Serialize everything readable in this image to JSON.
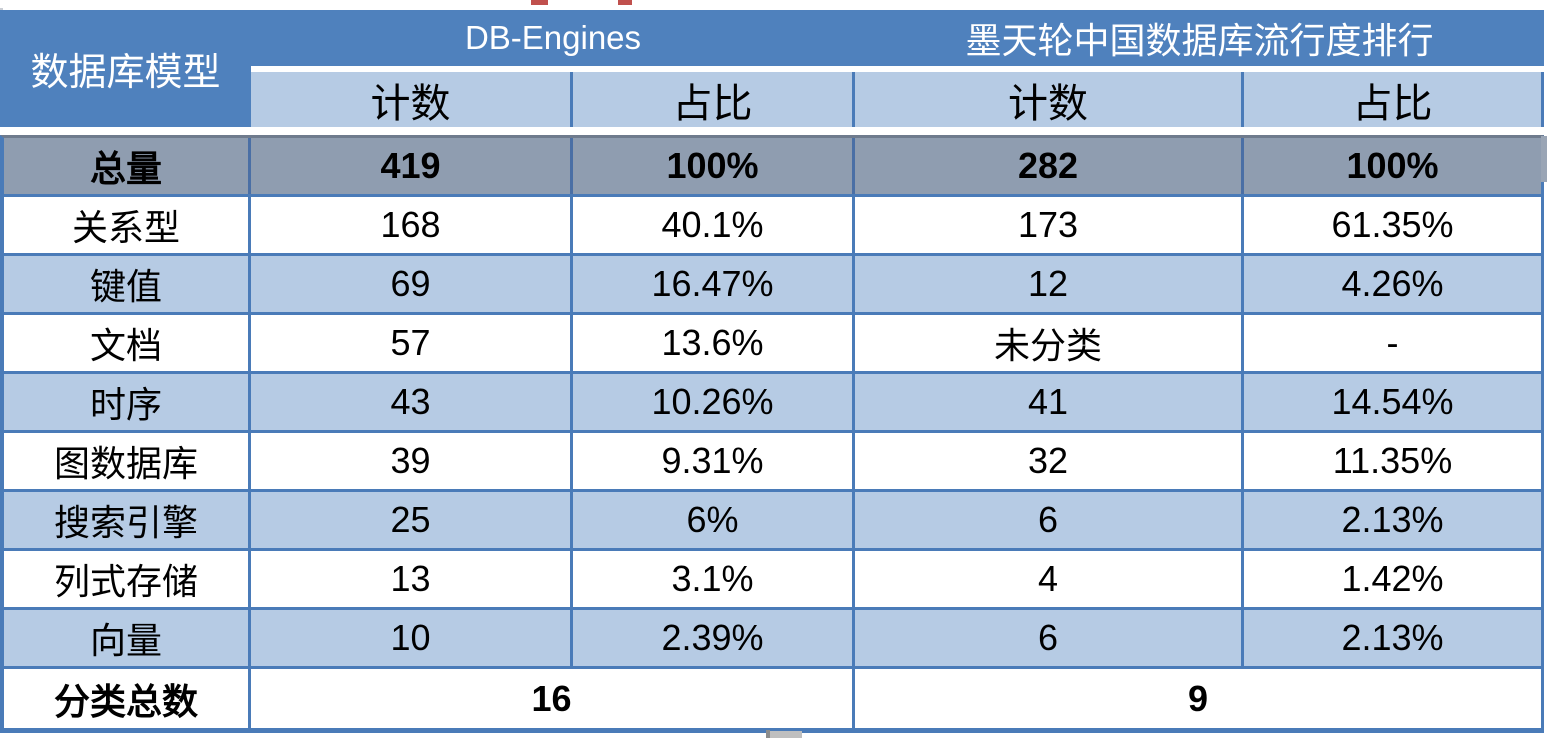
{
  "table": {
    "corner_header": "数据库模型",
    "groups": [
      {
        "label": "DB-Engines"
      },
      {
        "label": "墨天轮中国数据库流行度排行"
      }
    ],
    "sub_headers": [
      "计数",
      "占比",
      "计数",
      "占比"
    ],
    "total_row": {
      "label": "总量",
      "cells": [
        "419",
        "100%",
        "282",
        "100%"
      ]
    },
    "rows": [
      {
        "label": "关系型",
        "cells": [
          "168",
          "40.1%",
          "173",
          "61.35%"
        ]
      },
      {
        "label": "键值",
        "cells": [
          "69",
          "16.47%",
          "12",
          "4.26%"
        ]
      },
      {
        "label": "文档",
        "cells": [
          "57",
          "13.6%",
          "未分类",
          "-"
        ]
      },
      {
        "label": "时序",
        "cells": [
          "43",
          "10.26%",
          "41",
          "14.54%"
        ]
      },
      {
        "label": "图数据库",
        "cells": [
          "39",
          "9.31%",
          "32",
          "11.35%"
        ]
      },
      {
        "label": "搜索引擎",
        "cells": [
          "25",
          "6%",
          "6",
          "2.13%"
        ]
      },
      {
        "label": "列式存储",
        "cells": [
          "13",
          "3.1%",
          "4",
          "1.42%"
        ]
      },
      {
        "label": "向量",
        "cells": [
          "10",
          "2.39%",
          "6",
          "2.13%"
        ]
      }
    ],
    "footer_row": {
      "label": "分类总数",
      "left_value": "16",
      "right_value": "9"
    }
  },
  "colors": {
    "headerBlue": "#4F81BD",
    "lightBlue": "#B6CBE4",
    "grayRow": "#8F9DB0",
    "borderBlue": "#4A7BB8",
    "grayTopBorder": "#6F7B8D",
    "textDark": "#000000",
    "textLight": "#FFFFFF",
    "redDash": "#C0504D",
    "artifactGray": "#BFBFBF"
  }
}
